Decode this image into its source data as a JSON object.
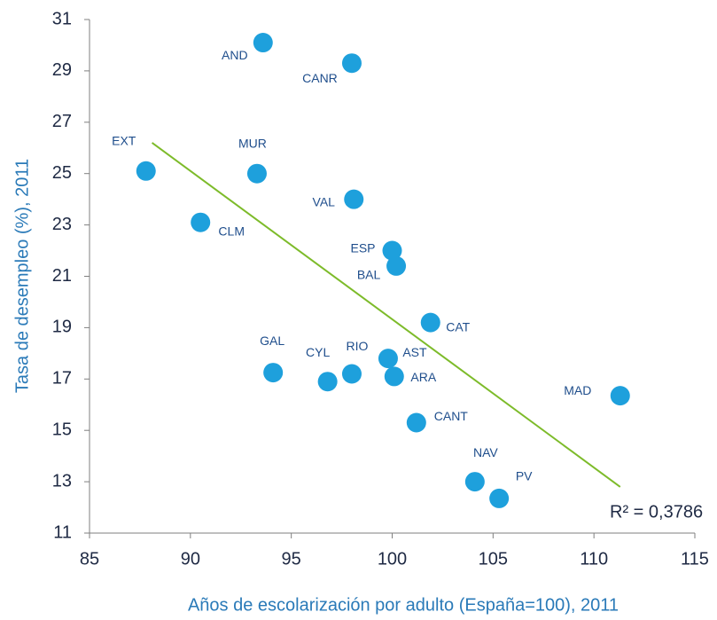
{
  "chart_data": {
    "type": "scatter",
    "x_label": "Años de escolarización por adulto (España=100), 2011",
    "y_label": "Tasa de desempleo (%), 2011",
    "categories": [
      "AND",
      "CANR",
      "EXT",
      "MUR",
      "VAL",
      "CLM",
      "ESP",
      "BAL",
      "CAT",
      "AST",
      "RIO",
      "GAL",
      "CYL",
      "ARA",
      "CANT",
      "MAD",
      "NAV",
      "PV"
    ],
    "x": [
      93.6,
      98.0,
      87.8,
      93.3,
      98.1,
      90.5,
      100.0,
      100.2,
      101.9,
      99.8,
      98.0,
      94.1,
      96.8,
      100.1,
      101.2,
      111.3,
      104.1,
      105.3
    ],
    "values": [
      30.1,
      29.3,
      25.1,
      25.0,
      24.0,
      23.1,
      22.0,
      21.4,
      19.2,
      17.8,
      17.2,
      17.25,
      16.9,
      17.1,
      15.3,
      16.35,
      13.0,
      12.35
    ],
    "color": "#1ea0dc",
    "trendline": {
      "x": [
        88.1,
        111.3
      ],
      "y": [
        26.2,
        12.8
      ],
      "color": "#7dbb2a"
    },
    "annotation": "R² = 0,3786",
    "xlim": [
      85,
      115
    ],
    "xticks": [
      85,
      90,
      95,
      100,
      105,
      110,
      115
    ],
    "ylim": [
      11,
      31
    ],
    "yticks": [
      11,
      13,
      15,
      17,
      19,
      21,
      23,
      25,
      27,
      29,
      31
    ],
    "grid": false
  }
}
